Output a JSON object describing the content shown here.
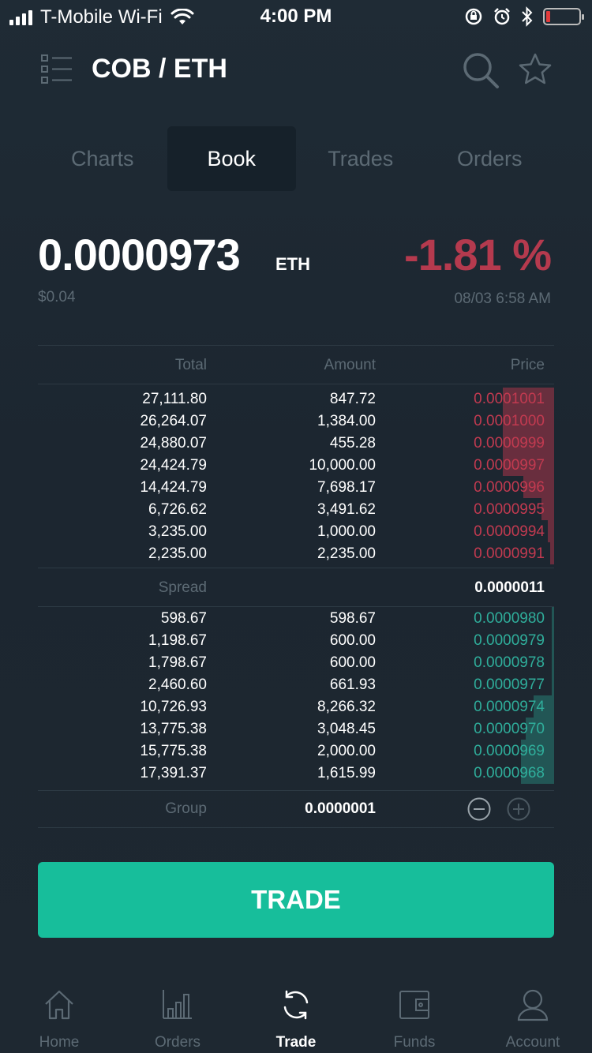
{
  "status_bar": {
    "carrier": "T-Mobile Wi-Fi",
    "time": "4:00 PM"
  },
  "header": {
    "title": "COB / ETH"
  },
  "tabs": [
    {
      "label": "Charts"
    },
    {
      "label": "Book"
    },
    {
      "label": "Trades"
    },
    {
      "label": "Orders"
    }
  ],
  "ticker": {
    "price": "0.0000973",
    "unit": "ETH",
    "usd": "$0.04",
    "change": "-1.81 %",
    "datetime": "08/03 6:58 AM"
  },
  "book": {
    "headers": {
      "total": "Total",
      "amount": "Amount",
      "price": "Price"
    },
    "asks": [
      {
        "total": "27,111.80",
        "amount": "847.72",
        "price": "0.0001001",
        "depth": 0.1
      },
      {
        "total": "26,264.07",
        "amount": "1,384.00",
        "price": "0.0001000",
        "depth": 0.1
      },
      {
        "total": "24,880.07",
        "amount": "455.28",
        "price": "0.0000999",
        "depth": 0.1
      },
      {
        "total": "24,424.79",
        "amount": "10,000.00",
        "price": "0.0000997",
        "depth": 0.1
      },
      {
        "total": "14,424.79",
        "amount": "7,698.17",
        "price": "0.0000996",
        "depth": 0.06
      },
      {
        "total": "6,726.62",
        "amount": "3,491.62",
        "price": "0.0000995",
        "depth": 0.025
      },
      {
        "total": "3,235.00",
        "amount": "1,000.00",
        "price": "0.0000994",
        "depth": 0.012
      },
      {
        "total": "2,235.00",
        "amount": "2,235.00",
        "price": "0.0000991",
        "depth": 0.008
      }
    ],
    "spread": {
      "label": "Spread",
      "value": "0.0000011"
    },
    "bids": [
      {
        "total": "598.67",
        "amount": "598.67",
        "price": "0.0000980",
        "depth": 0.004
      },
      {
        "total": "1,198.67",
        "amount": "600.00",
        "price": "0.0000979",
        "depth": 0.004
      },
      {
        "total": "1,798.67",
        "amount": "600.00",
        "price": "0.0000978",
        "depth": 0.004
      },
      {
        "total": "2,460.60",
        "amount": "661.93",
        "price": "0.0000977",
        "depth": 0.004
      },
      {
        "total": "10,726.93",
        "amount": "8,266.32",
        "price": "0.0000974",
        "depth": 0.04
      },
      {
        "total": "13,775.38",
        "amount": "3,048.45",
        "price": "0.0000970",
        "depth": 0.055
      },
      {
        "total": "15,775.38",
        "amount": "2,000.00",
        "price": "0.0000969",
        "depth": 0.065
      },
      {
        "total": "17,391.37",
        "amount": "1,615.99",
        "price": "0.0000968",
        "depth": 0.065
      }
    ],
    "group": {
      "label": "Group",
      "value": "0.0000001"
    }
  },
  "trade_button": {
    "label": "TRADE"
  },
  "nav": [
    {
      "label": "Home",
      "icon": "home-icon"
    },
    {
      "label": "Orders",
      "icon": "bar-chart-icon"
    },
    {
      "label": "Trade",
      "icon": "refresh-icon"
    },
    {
      "label": "Funds",
      "icon": "wallet-icon"
    },
    {
      "label": "Account",
      "icon": "person-icon"
    }
  ],
  "colors": {
    "background": "#1e2831",
    "accent": "#17be9b",
    "ask": "#c23a50",
    "bid": "#2fae9b",
    "negative_change": "#b53a4e",
    "muted": "#5c6a74"
  }
}
